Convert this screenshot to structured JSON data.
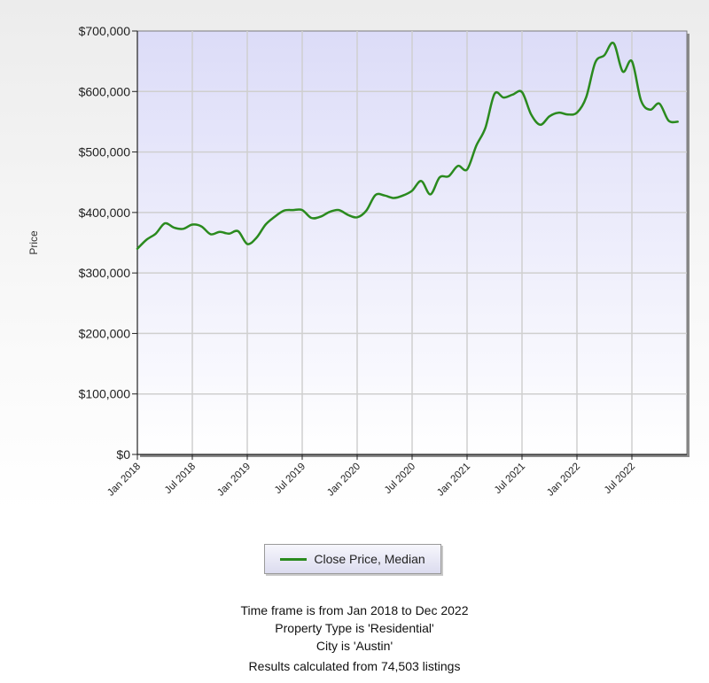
{
  "chart_data": {
    "type": "line",
    "title": "",
    "xlabel": "",
    "ylabel": "Price",
    "ylim": [
      0,
      700000
    ],
    "y_ticks": [
      "$700,000",
      "$600,000",
      "$500,000",
      "$400,000",
      "$300,000",
      "$200,000",
      "$100,000",
      "$0"
    ],
    "y_tick_values": [
      700000,
      600000,
      500000,
      400000,
      300000,
      200000,
      100000,
      0
    ],
    "x_ticks": [
      "Jan 2018",
      "Jul 2018",
      "Jan 2019",
      "Jul 2019",
      "Jan 2020",
      "Jul 2020",
      "Jan 2021",
      "Jul 2021",
      "Jan 2022",
      "Jul 2022"
    ],
    "grid": true,
    "legend_position": "bottom",
    "series": [
      {
        "name": "Close Price, Median",
        "color": "#2a8a1e",
        "x": [
          "Jan 2018",
          "Feb 2018",
          "Mar 2018",
          "Apr 2018",
          "May 2018",
          "Jun 2018",
          "Jul 2018",
          "Aug 2018",
          "Sep 2018",
          "Oct 2018",
          "Nov 2018",
          "Dec 2018",
          "Jan 2019",
          "Feb 2019",
          "Mar 2019",
          "Apr 2019",
          "May 2019",
          "Jun 2019",
          "Jul 2019",
          "Aug 2019",
          "Sep 2019",
          "Oct 2019",
          "Nov 2019",
          "Dec 2019",
          "Jan 2020",
          "Feb 2020",
          "Mar 2020",
          "Apr 2020",
          "May 2020",
          "Jun 2020",
          "Jul 2020",
          "Aug 2020",
          "Sep 2020",
          "Oct 2020",
          "Nov 2020",
          "Dec 2020",
          "Jan 2021",
          "Feb 2021",
          "Mar 2021",
          "Apr 2021",
          "May 2021",
          "Jun 2021",
          "Jul 2021",
          "Aug 2021",
          "Sep 2021",
          "Oct 2021",
          "Nov 2021",
          "Dec 2021",
          "Jan 2022",
          "Feb 2022",
          "Mar 2022",
          "Apr 2022",
          "May 2022",
          "Jun 2022",
          "Jul 2022",
          "Aug 2022",
          "Sep 2022",
          "Oct 2022",
          "Nov 2022",
          "Dec 2022"
        ],
        "values": [
          340000,
          355000,
          365000,
          382000,
          375000,
          373000,
          380000,
          377000,
          364000,
          368000,
          365000,
          369000,
          348000,
          358000,
          380000,
          393000,
          403000,
          404000,
          404000,
          391000,
          393000,
          401000,
          404000,
          396000,
          392000,
          403000,
          429000,
          428000,
          424000,
          428000,
          436000,
          452000,
          430000,
          458000,
          460000,
          477000,
          471000,
          510000,
          540000,
          596000,
          590000,
          595000,
          599000,
          562000,
          545000,
          559000,
          565000,
          562000,
          565000,
          590000,
          648000,
          660000,
          680000,
          633000,
          650000,
          585000,
          570000,
          580000,
          552000,
          550000
        ]
      }
    ]
  },
  "legend": {
    "label": "Close Price, Median"
  },
  "caption": {
    "line1": "Time frame is from Jan 2018 to Dec 2022",
    "line2": "Property Type is 'Residential'",
    "line3": "City is 'Austin'",
    "line4": "Results calculated from 74,503 listings"
  }
}
